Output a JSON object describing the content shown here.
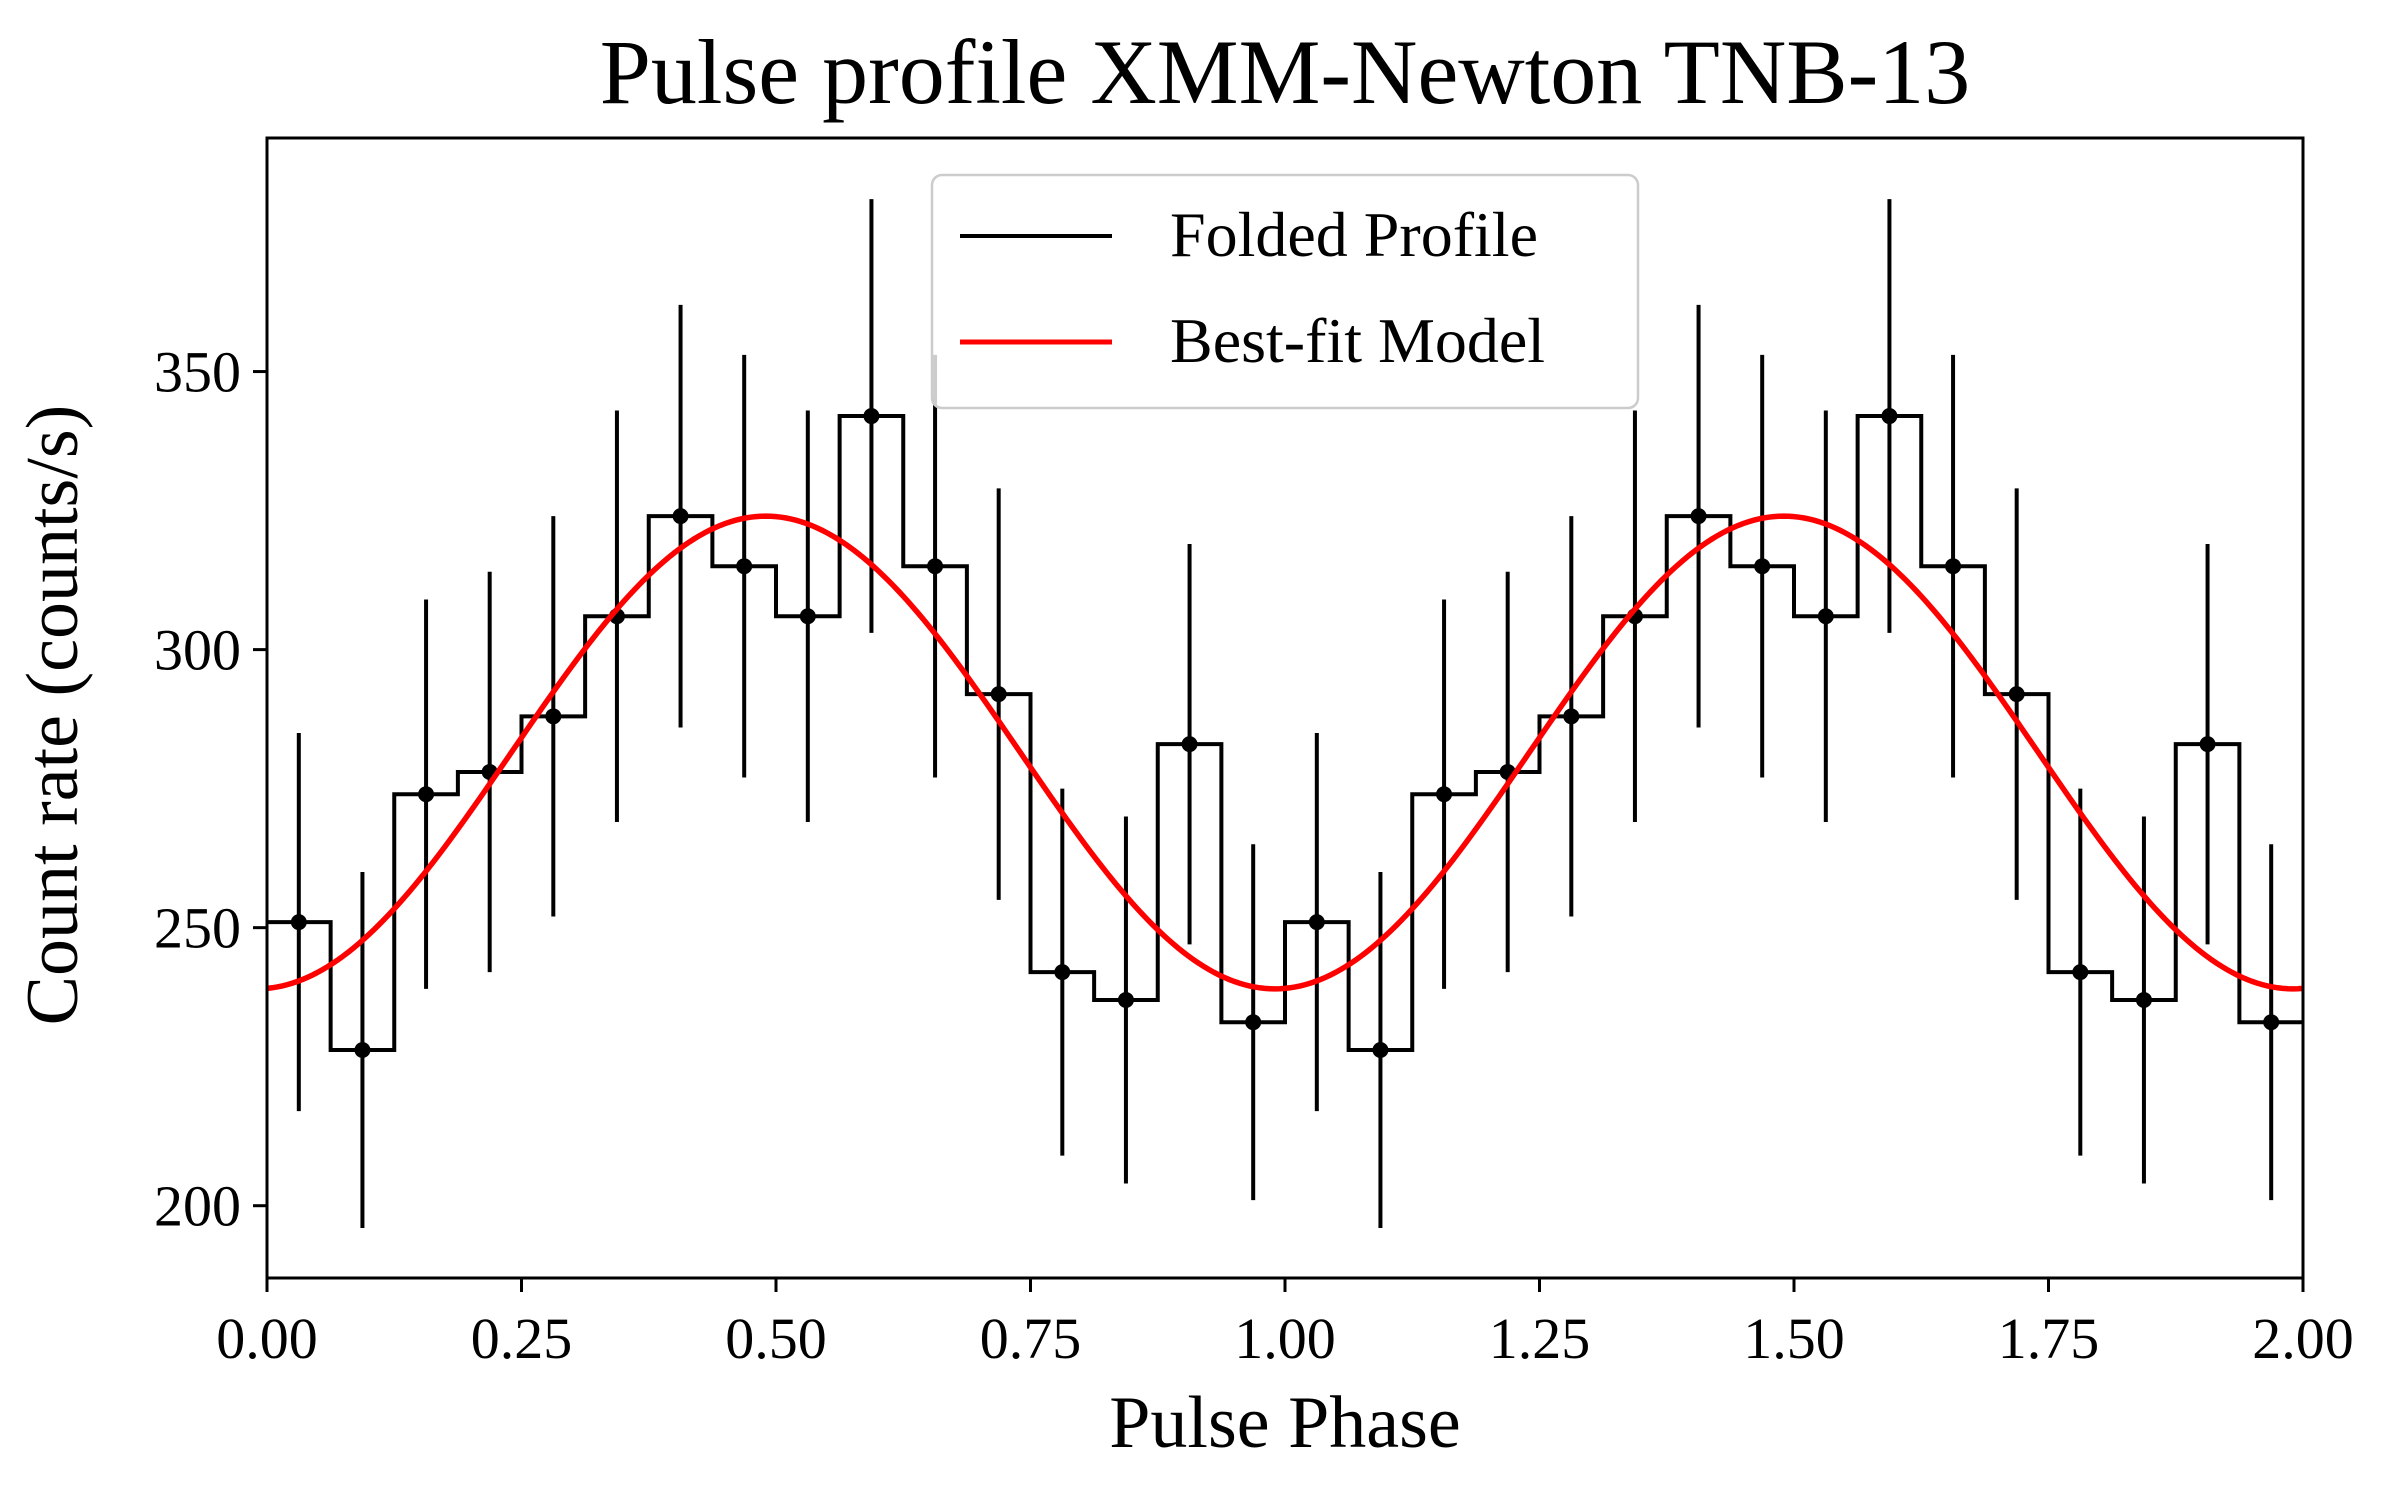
{
  "chart_data": {
    "type": "line",
    "title": "Pulse profile XMM-Newton TNB-13",
    "xlabel": "Pulse Phase",
    "ylabel": "Count rate (counts/s)",
    "xlim": [
      0,
      2
    ],
    "ylim": [
      187,
      392
    ],
    "xticks": [
      0,
      0.25,
      0.5,
      0.75,
      1.0,
      1.25,
      1.5,
      1.75,
      2.0
    ],
    "xtick_labels": [
      "0.00",
      "0.25",
      "0.50",
      "0.75",
      "1.00",
      "1.25",
      "1.50",
      "1.75",
      "2.00"
    ],
    "yticks": [
      200,
      250,
      300,
      350
    ],
    "ytick_labels": [
      "200",
      "250",
      "300",
      "350"
    ],
    "grid": false,
    "legend_position": "top-center",
    "legend": {
      "profile_label": "Folded Profile",
      "model_label": "Best-fit Model"
    },
    "colors": {
      "profile": "#000000",
      "model": "#ff0000"
    },
    "profile": {
      "name": "Folded Profile",
      "bin_width": 0.0625,
      "x": [
        0.03125,
        0.09375,
        0.15625,
        0.21875,
        0.28125,
        0.34375,
        0.40625,
        0.46875,
        0.53125,
        0.59375,
        0.65625,
        0.71875,
        0.78125,
        0.84375,
        0.90625,
        0.96875,
        1.03125,
        1.09375,
        1.15625,
        1.21875,
        1.28125,
        1.34375,
        1.40625,
        1.46875,
        1.53125,
        1.59375,
        1.65625,
        1.71875,
        1.78125,
        1.84375,
        1.90625,
        1.96875
      ],
      "y": [
        251,
        228,
        274,
        278,
        288,
        306,
        324,
        315,
        306,
        342,
        315,
        292,
        242,
        237,
        283,
        233,
        251,
        228,
        274,
        278,
        288,
        306,
        324,
        315,
        306,
        342,
        315,
        292,
        242,
        237,
        283,
        233
      ],
      "yerr": [
        34,
        32,
        35,
        36,
        36,
        37,
        38,
        38,
        37,
        39,
        38,
        37,
        33,
        33,
        36,
        32,
        34,
        32,
        35,
        36,
        36,
        37,
        38,
        38,
        37,
        39,
        38,
        37,
        33,
        33,
        36,
        32
      ]
    },
    "model": {
      "name": "Best-fit Model",
      "function": "sinusoid",
      "mean": 281.5,
      "amplitude": 42.5,
      "peak_phase": 0.49,
      "period": 1.0
    }
  }
}
